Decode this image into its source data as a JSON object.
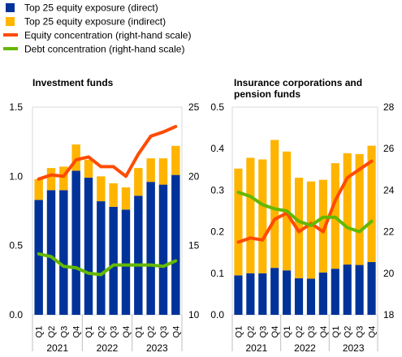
{
  "legend": [
    {
      "label": "Top 25 equity exposure (direct)",
      "color": "#003299",
      "kind": "box"
    },
    {
      "label": "Top 25 equity exposure (indirect)",
      "color": "#ffb400",
      "kind": "box"
    },
    {
      "label": "Equity concentration (right-hand scale)",
      "color": "#ff4b00",
      "kind": "line"
    },
    {
      "label": "Debt concentration (right-hand scale)",
      "color": "#65b800",
      "kind": "line"
    }
  ],
  "chart_data": [
    {
      "type": "bar",
      "title": "Investment funds",
      "quarters": [
        "Q1",
        "Q2",
        "Q3",
        "Q4",
        "Q1",
        "Q2",
        "Q3",
        "Q4",
        "Q1",
        "Q2",
        "Q3",
        "Q4"
      ],
      "years": [
        "2021",
        "2022",
        "2023"
      ],
      "ylim": [
        0,
        1.5
      ],
      "yticks": [
        "0.0",
        "0.5",
        "1.0",
        "1.5"
      ],
      "y2lim": [
        10,
        25
      ],
      "y2ticks": [
        "10",
        "15",
        "20",
        "25"
      ],
      "series": [
        {
          "name": "Top 25 equity exposure (direct)",
          "stack": "bar",
          "color": "#003299",
          "values": [
            0.83,
            0.9,
            0.9,
            1.04,
            0.99,
            0.82,
            0.78,
            0.76,
            0.86,
            0.96,
            0.94,
            1.01
          ]
        },
        {
          "name": "Top 25 equity exposure (indirect)",
          "stack": "bar",
          "color": "#ffb400",
          "values": [
            0.15,
            0.16,
            0.17,
            0.19,
            0.13,
            0.18,
            0.17,
            0.16,
            0.2,
            0.17,
            0.19,
            0.21
          ]
        },
        {
          "name": "Equity concentration (right-hand scale)",
          "axis": "right",
          "color": "#ff4b00",
          "values": [
            19.8,
            20.1,
            20.0,
            21.2,
            21.4,
            20.7,
            20.7,
            20.0,
            21.6,
            22.9,
            23.2,
            23.6
          ]
        },
        {
          "name": "Debt concentration (right-hand scale)",
          "axis": "right",
          "color": "#65b800",
          "values": [
            14.4,
            14.2,
            13.5,
            13.4,
            13.0,
            12.9,
            13.6,
            13.6,
            13.6,
            13.6,
            13.5,
            13.9
          ]
        }
      ]
    },
    {
      "type": "bar",
      "title": "Insurance corporations and pension funds",
      "quarters": [
        "Q1",
        "Q2",
        "Q3",
        "Q4",
        "Q1",
        "Q2",
        "Q3",
        "Q4",
        "Q1",
        "Q2",
        "Q3",
        "Q4"
      ],
      "years": [
        "2021",
        "2022",
        "2023"
      ],
      "ylim": [
        0,
        0.5
      ],
      "yticks": [
        "0.0",
        "0.1",
        "0.2",
        "0.3",
        "0.4",
        "0.5"
      ],
      "y2lim": [
        18,
        28
      ],
      "y2ticks": [
        "18",
        "20",
        "22",
        "24",
        "26",
        "28"
      ],
      "series": [
        {
          "name": "Top 25 equity exposure (direct)",
          "stack": "bar",
          "color": "#003299",
          "values": [
            0.095,
            0.1,
            0.1,
            0.113,
            0.107,
            0.088,
            0.087,
            0.102,
            0.111,
            0.121,
            0.12,
            0.127
          ]
        },
        {
          "name": "Top 25 equity exposure (indirect)",
          "stack": "bar",
          "color": "#ffb400",
          "values": [
            0.257,
            0.278,
            0.274,
            0.308,
            0.286,
            0.242,
            0.234,
            0.223,
            0.254,
            0.268,
            0.267,
            0.28
          ]
        },
        {
          "name": "Equity concentration (right-hand scale)",
          "axis": "right",
          "color": "#ff4b00",
          "values": [
            21.5,
            21.7,
            21.6,
            22.6,
            22.9,
            22.0,
            22.4,
            22.0,
            23.5,
            24.6,
            25.0,
            25.4
          ]
        },
        {
          "name": "Debt concentration (right-hand scale)",
          "axis": "right",
          "color": "#65b800",
          "values": [
            23.9,
            23.7,
            23.3,
            23.1,
            23.0,
            22.5,
            22.3,
            22.7,
            22.7,
            22.2,
            22.0,
            22.5
          ]
        }
      ]
    }
  ]
}
